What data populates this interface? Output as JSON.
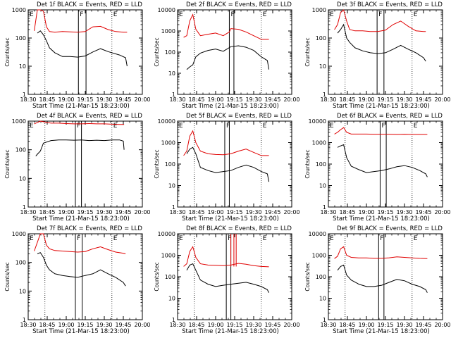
{
  "figure": {
    "footer_xlabel": "Start Time (21-Mar-15 18:23:00)",
    "ylabel": "Counts/sec",
    "colors": {
      "events": "#000000",
      "lld": "#e00000",
      "axes": "#000000"
    }
  },
  "chart_data": [
    {
      "type": "line",
      "title": "Det 1f BLACK = Events, RED = LLD",
      "xlabel": "Start Time (21-Mar-15 18:23:00)",
      "ylabel": "Counts/sec",
      "x_ticks": [
        "18:30",
        "18:45",
        "19:00",
        "19:15",
        "19:30",
        "19:45",
        "20:00"
      ],
      "y_ticks": [
        "1",
        "10",
        "100",
        "1000"
      ],
      "ylim": [
        1,
        1000
      ],
      "yscale": "log",
      "xlim_minutes": [
        18.5,
        20.0
      ],
      "region_labels": [
        "E",
        "F",
        "E"
      ],
      "dotted_lines_min": [
        18.72,
        19.6
      ],
      "solid_lines_min": [
        19.16,
        19.26
      ],
      "series": [
        {
          "name": "Events",
          "x": [
            18.62,
            18.66,
            18.7,
            18.74,
            18.78,
            18.85,
            18.95,
            19.05,
            19.15,
            19.25,
            19.35,
            19.45,
            19.55,
            19.7,
            19.78,
            19.8
          ],
          "y": [
            150,
            180,
            130,
            80,
            45,
            30,
            22,
            22,
            21,
            23,
            32,
            42,
            33,
            25,
            20,
            10
          ]
        },
        {
          "name": "LLD",
          "x": [
            18.58,
            18.62,
            18.66,
            18.7,
            18.74,
            18.78,
            18.85,
            18.95,
            19.05,
            19.15,
            19.25,
            19.35,
            19.45,
            19.55,
            19.65,
            19.75,
            19.8
          ],
          "y": [
            180,
            1000,
            1000,
            900,
            250,
            170,
            160,
            170,
            165,
            160,
            170,
            250,
            260,
            200,
            170,
            160,
            160
          ]
        }
      ]
    },
    {
      "type": "line",
      "title": "Det 2f BLACK = Events, RED = LLD",
      "xlabel": "Start Time (21-Mar-15 18:23:00)",
      "ylabel": "Counts/sec",
      "x_ticks": [
        "18:30",
        "18:45",
        "19:00",
        "19:15",
        "19:30",
        "19:45",
        "20:00"
      ],
      "y_ticks": [
        "1",
        "10",
        "100",
        "1000",
        "10000"
      ],
      "ylim": [
        1,
        10000
      ],
      "yscale": "log",
      "xlim_minutes": [
        18.5,
        20.0
      ],
      "region_labels": [
        "E",
        "F",
        "E"
      ],
      "dotted_lines_min": [
        18.72,
        19.6
      ],
      "solid_lines_min": [
        19.18,
        19.24
      ],
      "series": [
        {
          "name": "Events",
          "x": [
            18.62,
            18.66,
            18.7,
            18.74,
            18.8,
            18.9,
            19.0,
            19.1,
            19.2,
            19.3,
            19.4,
            19.5,
            19.6,
            19.68,
            19.7
          ],
          "y": [
            15,
            20,
            25,
            60,
            90,
            120,
            140,
            110,
            180,
            200,
            170,
            120,
            60,
            40,
            15
          ]
        },
        {
          "name": "LLD",
          "x": [
            18.58,
            18.62,
            18.66,
            18.7,
            18.74,
            18.8,
            18.9,
            19.0,
            19.1,
            19.18,
            19.2,
            19.3,
            19.4,
            19.5,
            19.6,
            19.7
          ],
          "y": [
            500,
            600,
            3000,
            6000,
            1200,
            600,
            700,
            800,
            600,
            900,
            1300,
            1200,
            900,
            600,
            400,
            400
          ]
        }
      ]
    },
    {
      "type": "line",
      "title": "Det 3f BLACK = Events, RED = LLD",
      "xlabel": "Start Time (21-Mar-15 18:23:00)",
      "ylabel": "Counts/sec",
      "x_ticks": [
        "18:30",
        "18:45",
        "19:00",
        "19:15",
        "19:30",
        "19:45",
        "20:00"
      ],
      "y_ticks": [
        "1",
        "10",
        "100",
        "1000"
      ],
      "ylim": [
        1,
        1000
      ],
      "yscale": "log",
      "xlim_minutes": [
        18.5,
        20.0
      ],
      "region_labels": [
        "E",
        "F",
        "E"
      ],
      "dotted_lines_min": [
        18.72,
        19.6
      ],
      "solid_lines_min": [
        19.14,
        19.23
      ],
      "series": [
        {
          "name": "Events",
          "x": [
            18.62,
            18.66,
            18.7,
            18.74,
            18.78,
            18.85,
            18.95,
            19.05,
            19.15,
            19.25,
            19.35,
            19.45,
            19.55,
            19.65,
            19.75,
            19.78
          ],
          "y": [
            150,
            200,
            300,
            100,
            70,
            45,
            35,
            30,
            28,
            30,
            40,
            55,
            40,
            30,
            20,
            15
          ]
        },
        {
          "name": "LLD",
          "x": [
            18.58,
            18.62,
            18.66,
            18.7,
            18.74,
            18.78,
            18.85,
            18.95,
            19.05,
            19.15,
            19.25,
            19.35,
            19.45,
            19.55,
            19.65,
            19.75,
            19.78
          ],
          "y": [
            200,
            300,
            800,
            1000,
            400,
            200,
            180,
            180,
            170,
            170,
            190,
            300,
            400,
            260,
            180,
            170,
            170
          ]
        }
      ]
    },
    {
      "type": "line",
      "title": "Det 4f BLACK = Events, RED = LLD",
      "xlabel": "Start Time (21-Mar-15 18:23:00)",
      "ylabel": "Counts/sec",
      "x_ticks": [
        "18:30",
        "18:45",
        "19:00",
        "19:15",
        "19:30",
        "19:45",
        "20:00"
      ],
      "y_ticks": [
        "1",
        "10",
        "100",
        "1000"
      ],
      "ylim": [
        1,
        1000
      ],
      "yscale": "log",
      "xlim_minutes": [
        18.5,
        20.0
      ],
      "region_labels": [
        "E",
        "F",
        "E"
      ],
      "dotted_lines_min": [
        18.72,
        19.6
      ],
      "solid_lines_min": [
        19.12,
        19.2
      ],
      "series": [
        {
          "name": "Events",
          "x": [
            18.6,
            18.62,
            18.66,
            18.7,
            18.8,
            18.9,
            19.0,
            19.1,
            19.2,
            19.3,
            19.4,
            19.5,
            19.6,
            19.7,
            19.75,
            19.76
          ],
          "y": [
            60,
            70,
            90,
            170,
            210,
            220,
            220,
            215,
            220,
            210,
            215,
            210,
            220,
            220,
            200,
            100
          ]
        },
        {
          "name": "LLD",
          "x": [
            18.58,
            18.62,
            18.66,
            18.7,
            18.8,
            18.9,
            19.0,
            19.1,
            19.2,
            19.3,
            19.4,
            19.5,
            19.6,
            19.7,
            19.76
          ],
          "y": [
            800,
            900,
            1000,
            950,
            850,
            850,
            820,
            800,
            800,
            820,
            800,
            800,
            780,
            760,
            760
          ]
        }
      ]
    },
    {
      "type": "line",
      "title": "Det 5f BLACK = Events, RED = LLD",
      "xlabel": "Start Time (21-Mar-15 18:23:00)",
      "ylabel": "Counts/sec",
      "x_ticks": [
        "18:30",
        "18:45",
        "19:00",
        "19:15",
        "19:30",
        "19:45",
        "20:00"
      ],
      "y_ticks": [
        "1",
        "10",
        "100",
        "1000",
        "10000"
      ],
      "ylim": [
        1,
        10000
      ],
      "yscale": "log",
      "xlim_minutes": [
        18.5,
        20.0
      ],
      "region_labels": [
        "E",
        "F",
        "E"
      ],
      "dotted_lines_min": [
        18.72,
        19.6
      ],
      "solid_lines_min": [
        19.12,
        19.18
      ],
      "series": [
        {
          "name": "Events",
          "x": [
            18.62,
            18.66,
            18.7,
            18.74,
            18.8,
            18.9,
            19.0,
            19.1,
            19.2,
            19.3,
            19.4,
            19.5,
            19.6,
            19.68,
            19.7
          ],
          "y": [
            300,
            500,
            600,
            300,
            70,
            50,
            40,
            45,
            50,
            70,
            90,
            70,
            45,
            35,
            15
          ]
        },
        {
          "name": "LLD",
          "x": [
            18.58,
            18.62,
            18.66,
            18.7,
            18.74,
            18.8,
            18.9,
            19.0,
            19.1,
            19.2,
            19.3,
            19.4,
            19.5,
            19.6,
            19.7
          ],
          "y": [
            250,
            400,
            2000,
            3500,
            1000,
            400,
            300,
            280,
            270,
            300,
            400,
            500,
            350,
            250,
            250
          ]
        }
      ]
    },
    {
      "type": "line",
      "title": "Det 6f BLACK = Events, RED = LLD",
      "xlabel": "Start Time (21-Mar-15 18:23:00)",
      "ylabel": "Counts/sec",
      "x_ticks": [
        "18:30",
        "18:45",
        "19:00",
        "19:15",
        "19:30",
        "19:45",
        "20:00"
      ],
      "y_ticks": [
        "1",
        "10",
        "100",
        "1000",
        "10000"
      ],
      "ylim": [
        1,
        10000
      ],
      "yscale": "log",
      "xlim_minutes": [
        18.5,
        20.0
      ],
      "region_labels": [
        "E",
        "F",
        "E"
      ],
      "dotted_lines_min": [
        18.72,
        19.6
      ],
      "solid_lines_min": [
        19.18,
        19.26
      ],
      "series": [
        {
          "name": "Events",
          "x": [
            18.62,
            18.66,
            18.7,
            18.74,
            18.8,
            18.9,
            19.0,
            19.1,
            19.2,
            19.3,
            19.4,
            19.5,
            19.6,
            19.7,
            19.78,
            19.8
          ],
          "y": [
            600,
            700,
            800,
            200,
            80,
            55,
            40,
            45,
            50,
            60,
            75,
            85,
            70,
            50,
            35,
            25
          ]
        },
        {
          "name": "LLD",
          "x": [
            18.58,
            18.62,
            18.66,
            18.7,
            18.74,
            18.8,
            18.9,
            19.0,
            19.1,
            19.2,
            19.3,
            19.4,
            19.5,
            19.6,
            19.7,
            19.8
          ],
          "y": [
            2500,
            3000,
            4000,
            5000,
            3000,
            2500,
            2500,
            2500,
            2450,
            2450,
            2450,
            2400,
            2450,
            2400,
            2400,
            2400
          ]
        }
      ]
    },
    {
      "type": "line",
      "title": "Det 7f BLACK = Events, RED = LLD",
      "xlabel": "Start Time (21-Mar-15 18:23:00)",
      "ylabel": "Counts/sec",
      "x_ticks": [
        "18:30",
        "18:45",
        "19:00",
        "19:15",
        "19:30",
        "19:45",
        "20:00"
      ],
      "y_ticks": [
        "1",
        "10",
        "100",
        "1000"
      ],
      "ylim": [
        1,
        1000
      ],
      "yscale": "log",
      "xlim_minutes": [
        18.5,
        20.0
      ],
      "region_labels": [
        "E",
        "F",
        "E"
      ],
      "dotted_lines_min": [
        18.72,
        19.6
      ],
      "solid_lines_min": [
        19.12,
        19.21
      ],
      "series": [
        {
          "name": "Events",
          "x": [
            18.62,
            18.66,
            18.7,
            18.74,
            18.78,
            18.85,
            18.95,
            19.05,
            19.15,
            19.25,
            19.35,
            19.45,
            19.55,
            19.65,
            19.75,
            19.78
          ],
          "y": [
            200,
            220,
            150,
            80,
            55,
            40,
            35,
            32,
            30,
            35,
            40,
            55,
            40,
            30,
            20,
            15
          ]
        },
        {
          "name": "LLD",
          "x": [
            18.58,
            18.62,
            18.66,
            18.7,
            18.74,
            18.78,
            18.85,
            18.95,
            19.05,
            19.15,
            19.25,
            19.35,
            19.45,
            19.55,
            19.65,
            19.75,
            19.78
          ],
          "y": [
            250,
            500,
            1000,
            1000,
            400,
            300,
            260,
            250,
            240,
            230,
            240,
            300,
            350,
            280,
            230,
            210,
            200
          ]
        }
      ]
    },
    {
      "type": "line",
      "title": "Det 8f BLACK = Events, RED = LLD",
      "xlabel": "Start Time (21-Mar-15 18:23:00)",
      "ylabel": "Counts/sec",
      "x_ticks": [
        "18:30",
        "18:45",
        "19:00",
        "19:15",
        "19:30",
        "19:45",
        "20:00"
      ],
      "y_ticks": [
        "1",
        "10",
        "100",
        "1000",
        "10000"
      ],
      "ylim": [
        1,
        10000
      ],
      "yscale": "log",
      "xlim_minutes": [
        18.5,
        20.0
      ],
      "region_labels": [
        "E",
        "F",
        "E"
      ],
      "dotted_lines_min": [
        18.72,
        19.6
      ],
      "solid_lines_min": [
        19.14,
        19.2
      ],
      "spike_lines_min": [
        19.2,
        19.24,
        19.27
      ],
      "series": [
        {
          "name": "Events",
          "x": [
            18.62,
            18.66,
            18.7,
            18.74,
            18.8,
            18.9,
            19.0,
            19.1,
            19.2,
            19.3,
            19.4,
            19.5,
            19.6,
            19.68,
            19.7
          ],
          "y": [
            200,
            350,
            400,
            200,
            70,
            45,
            35,
            40,
            45,
            50,
            55,
            45,
            35,
            25,
            18
          ]
        },
        {
          "name": "LLD",
          "x": [
            18.58,
            18.62,
            18.66,
            18.7,
            18.74,
            18.8,
            18.9,
            19.0,
            19.1,
            19.2,
            19.3,
            19.4,
            19.5,
            19.6,
            19.7
          ],
          "y": [
            300,
            400,
            1500,
            2500,
            800,
            400,
            350,
            340,
            330,
            350,
            420,
            380,
            330,
            300,
            290
          ]
        }
      ]
    },
    {
      "type": "line",
      "title": "Det 9f BLACK = Events, RED = LLD",
      "xlabel": "Start Time (21-Mar-15 18:23:00)",
      "ylabel": "Counts/sec",
      "x_ticks": [
        "18:30",
        "18:45",
        "19:00",
        "19:15",
        "19:30",
        "19:45",
        "20:00"
      ],
      "y_ticks": [
        "1",
        "10",
        "100",
        "1000",
        "10000"
      ],
      "ylim": [
        1,
        10000
      ],
      "yscale": "log",
      "xlim_minutes": [
        18.5,
        20.0
      ],
      "region_labels": [
        "E",
        "F",
        "E"
      ],
      "dotted_lines_min": [
        18.72,
        19.6
      ],
      "solid_lines_min": [
        19.16,
        19.23
      ],
      "series": [
        {
          "name": "Events",
          "x": [
            18.62,
            18.66,
            18.7,
            18.74,
            18.8,
            18.9,
            19.0,
            19.1,
            19.2,
            19.3,
            19.4,
            19.5,
            19.6,
            19.7,
            19.78,
            19.8
          ],
          "y": [
            200,
            300,
            350,
            120,
            70,
            45,
            35,
            35,
            40,
            55,
            75,
            65,
            45,
            35,
            25,
            18
          ]
        },
        {
          "name": "LLD",
          "x": [
            18.58,
            18.62,
            18.66,
            18.7,
            18.74,
            18.8,
            18.9,
            19.0,
            19.1,
            19.2,
            19.3,
            19.4,
            19.5,
            19.6,
            19.7,
            19.8
          ],
          "y": [
            700,
            900,
            2000,
            2500,
            1000,
            800,
            750,
            750,
            720,
            720,
            760,
            850,
            800,
            750,
            720,
            700
          ]
        }
      ]
    }
  ]
}
